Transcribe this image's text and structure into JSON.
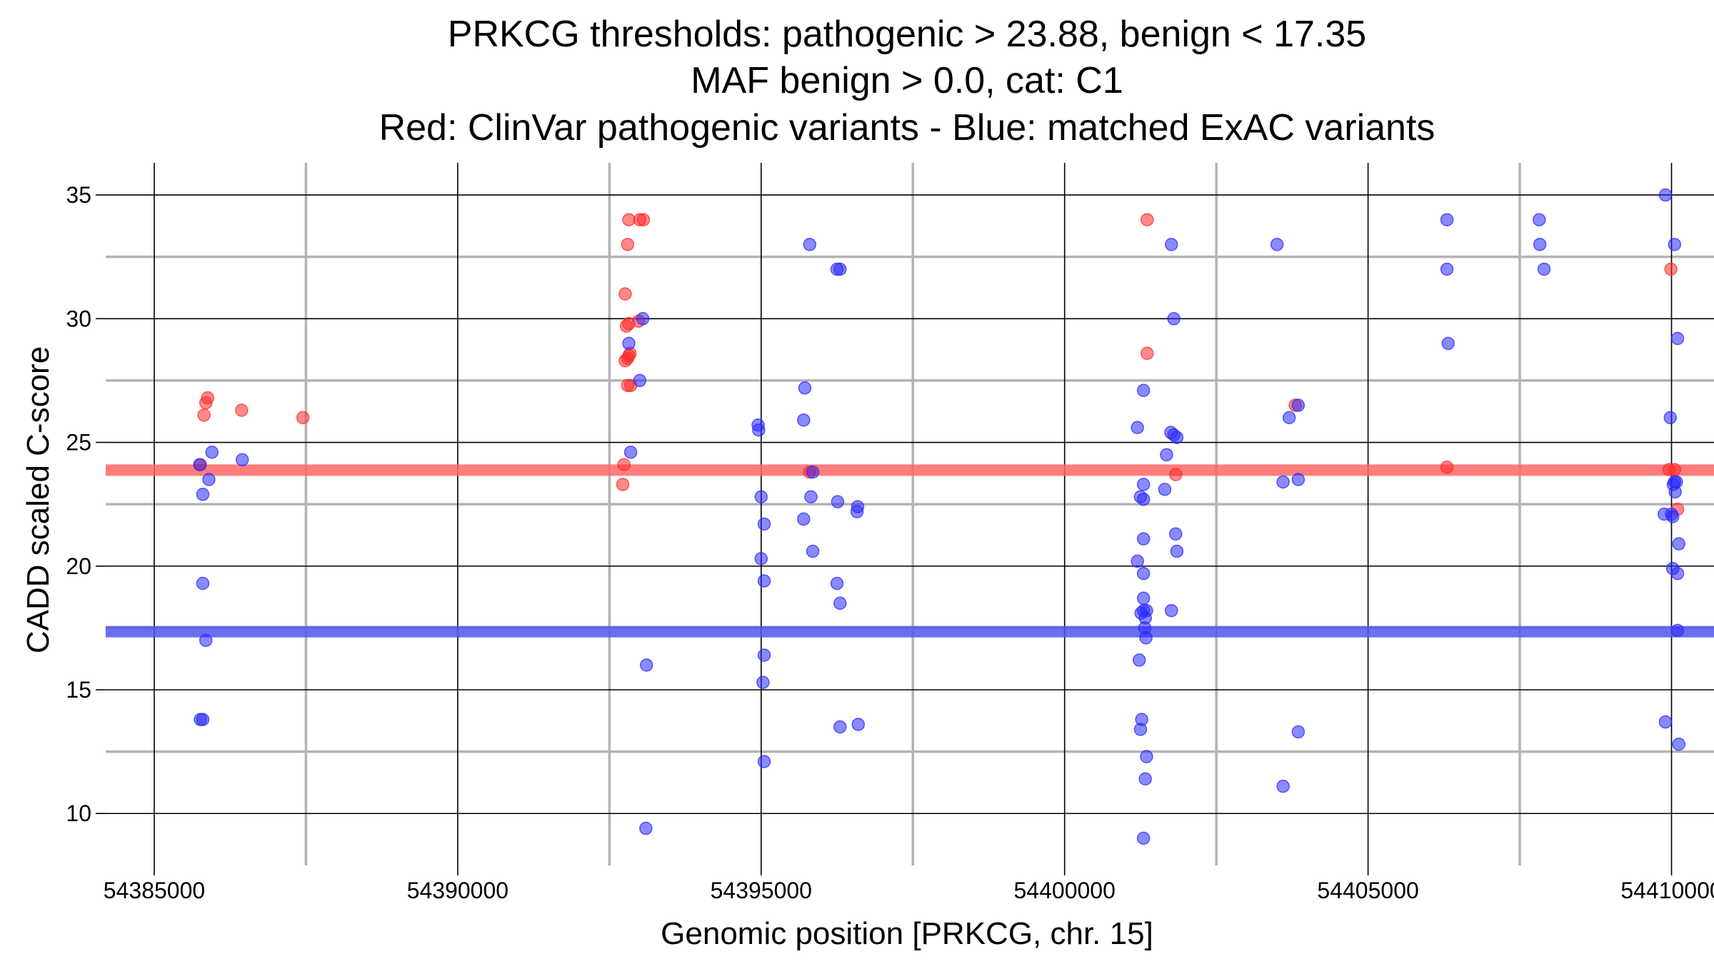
{
  "chart_data": {
    "type": "scatter",
    "title_lines": [
      "PRKCG thresholds: pathogenic > 23.88, benign < 17.35",
      "MAF benign > 0.0, cat: C1",
      "Red: ClinVar pathogenic variants - Blue: matched ExAC variants"
    ],
    "xlabel": "Genomic position [PRKCG, chr. 15]",
    "ylabel": "CADD scaled C-score",
    "xlim": [
      54384200,
      54410700
    ],
    "ylim": [
      7.9,
      36.3
    ],
    "x_ticks": [
      {
        "value": 54385000,
        "label": "54385000"
      },
      {
        "value": 54390000,
        "label": "54390000"
      },
      {
        "value": 54395000,
        "label": "54395000"
      },
      {
        "value": 54400000,
        "label": "54400000"
      },
      {
        "value": 54405000,
        "label": "54405000"
      },
      {
        "value": 54410000,
        "label": "54410000"
      }
    ],
    "y_ticks": [
      {
        "value": 10,
        "label": "10"
      },
      {
        "value": 15,
        "label": "15"
      },
      {
        "value": 20,
        "label": "20"
      },
      {
        "value": 25,
        "label": "25"
      },
      {
        "value": 30,
        "label": "30"
      },
      {
        "value": 35,
        "label": "35"
      }
    ],
    "x_minor_grid": [
      54387500,
      54392500,
      54397500,
      54402500,
      54407500
    ],
    "y_minor_grid": [
      12.5,
      17.5,
      22.5,
      27.5,
      32.5
    ],
    "thresholds": [
      {
        "name": "pathogenic threshold",
        "value": 23.88,
        "color": "#ff6666"
      },
      {
        "name": "benign threshold",
        "value": 17.35,
        "color": "#5555ee"
      }
    ],
    "series": [
      {
        "name": "ClinVar pathogenic variants",
        "color": "#ff2a2a",
        "points": [
          [
            54385760,
            24.1
          ],
          [
            54385820,
            26.1
          ],
          [
            54385850,
            26.6
          ],
          [
            54385880,
            26.8
          ],
          [
            54386440,
            26.3
          ],
          [
            54387450,
            26.0
          ],
          [
            54392740,
            24.1
          ],
          [
            54392720,
            23.3
          ],
          [
            54392760,
            31.0
          ],
          [
            54392800,
            33.0
          ],
          [
            54392820,
            34.0
          ],
          [
            54393000,
            34.0
          ],
          [
            54393060,
            34.0
          ],
          [
            54392780,
            29.7
          ],
          [
            54392820,
            29.8
          ],
          [
            54392980,
            29.9
          ],
          [
            54392760,
            28.3
          ],
          [
            54392800,
            28.4
          ],
          [
            54392820,
            28.5
          ],
          [
            54392840,
            28.6
          ],
          [
            54392800,
            27.3
          ],
          [
            54392850,
            27.3
          ],
          [
            54395800,
            23.8
          ],
          [
            54401360,
            34.0
          ],
          [
            54401360,
            28.6
          ],
          [
            54401830,
            23.7
          ],
          [
            54403800,
            26.5
          ],
          [
            54406300,
            24.0
          ],
          [
            54409990,
            32.0
          ],
          [
            54409960,
            23.9
          ],
          [
            54410050,
            23.9
          ],
          [
            54410100,
            22.3
          ]
        ]
      },
      {
        "name": "matched ExAC variants",
        "color": "#2a2aff",
        "points": [
          [
            54385750,
            24.1
          ],
          [
            54385950,
            24.6
          ],
          [
            54386450,
            24.3
          ],
          [
            54385900,
            23.5
          ],
          [
            54385800,
            22.9
          ],
          [
            54385800,
            19.3
          ],
          [
            54385850,
            17.0
          ],
          [
            54385760,
            13.8
          ],
          [
            54385800,
            13.8
          ],
          [
            54392820,
            29.0
          ],
          [
            54393050,
            30.0
          ],
          [
            54393000,
            27.5
          ],
          [
            54392850,
            24.6
          ],
          [
            54393110,
            16.0
          ],
          [
            54393100,
            9.4
          ],
          [
            54395800,
            33.0
          ],
          [
            54396250,
            32.0
          ],
          [
            54396300,
            32.0
          ],
          [
            54395720,
            27.2
          ],
          [
            54395700,
            25.9
          ],
          [
            54394950,
            25.7
          ],
          [
            54394960,
            25.5
          ],
          [
            54395850,
            23.8
          ],
          [
            54395000,
            22.8
          ],
          [
            54395820,
            22.8
          ],
          [
            54396260,
            22.6
          ],
          [
            54396590,
            22.4
          ],
          [
            54396580,
            22.2
          ],
          [
            54395700,
            21.9
          ],
          [
            54395050,
            21.7
          ],
          [
            54395850,
            20.6
          ],
          [
            54395000,
            20.3
          ],
          [
            54395050,
            19.4
          ],
          [
            54396250,
            19.3
          ],
          [
            54396300,
            18.5
          ],
          [
            54395050,
            16.4
          ],
          [
            54395030,
            15.3
          ],
          [
            54396300,
            13.5
          ],
          [
            54396600,
            13.6
          ],
          [
            54395050,
            12.1
          ],
          [
            54401760,
            33.0
          ],
          [
            54401800,
            30.0
          ],
          [
            54401300,
            27.1
          ],
          [
            54401200,
            25.6
          ],
          [
            54401750,
            25.4
          ],
          [
            54401800,
            25.3
          ],
          [
            54401850,
            25.2
          ],
          [
            54401680,
            24.5
          ],
          [
            54401300,
            23.3
          ],
          [
            54401650,
            23.1
          ],
          [
            54401250,
            22.8
          ],
          [
            54401300,
            22.7
          ],
          [
            54401830,
            21.3
          ],
          [
            54401300,
            21.1
          ],
          [
            54401850,
            20.6
          ],
          [
            54401200,
            20.2
          ],
          [
            54401300,
            19.7
          ],
          [
            54401300,
            18.7
          ],
          [
            54401260,
            18.1
          ],
          [
            54401300,
            18.2
          ],
          [
            54401350,
            18.2
          ],
          [
            54401760,
            18.2
          ],
          [
            54401330,
            17.9
          ],
          [
            54401320,
            17.5
          ],
          [
            54401340,
            17.1
          ],
          [
            54401230,
            16.2
          ],
          [
            54401270,
            13.8
          ],
          [
            54401250,
            13.4
          ],
          [
            54401350,
            12.3
          ],
          [
            54401330,
            11.4
          ],
          [
            54401300,
            9.0
          ],
          [
            54403500,
            33.0
          ],
          [
            54403700,
            26.0
          ],
          [
            54403850,
            26.5
          ],
          [
            54403600,
            23.4
          ],
          [
            54403850,
            23.5
          ],
          [
            54403600,
            11.1
          ],
          [
            54403850,
            13.3
          ],
          [
            54406300,
            34.0
          ],
          [
            54406300,
            32.0
          ],
          [
            54406320,
            29.0
          ],
          [
            54407820,
            34.0
          ],
          [
            54407830,
            33.0
          ],
          [
            54407900,
            32.0
          ],
          [
            54409900,
            35.0
          ],
          [
            54410050,
            33.0
          ],
          [
            54410100,
            29.2
          ],
          [
            54409980,
            26.0
          ],
          [
            54409880,
            22.1
          ],
          [
            54410000,
            22.1
          ],
          [
            54410020,
            22.0
          ],
          [
            54410050,
            23.4
          ],
          [
            54410080,
            23.4
          ],
          [
            54410030,
            23.3
          ],
          [
            54410060,
            23.0
          ],
          [
            54410120,
            20.9
          ],
          [
            54410020,
            19.9
          ],
          [
            54410100,
            19.7
          ],
          [
            54410100,
            17.4
          ],
          [
            54409900,
            13.7
          ],
          [
            54410120,
            12.8
          ]
        ]
      }
    ]
  }
}
